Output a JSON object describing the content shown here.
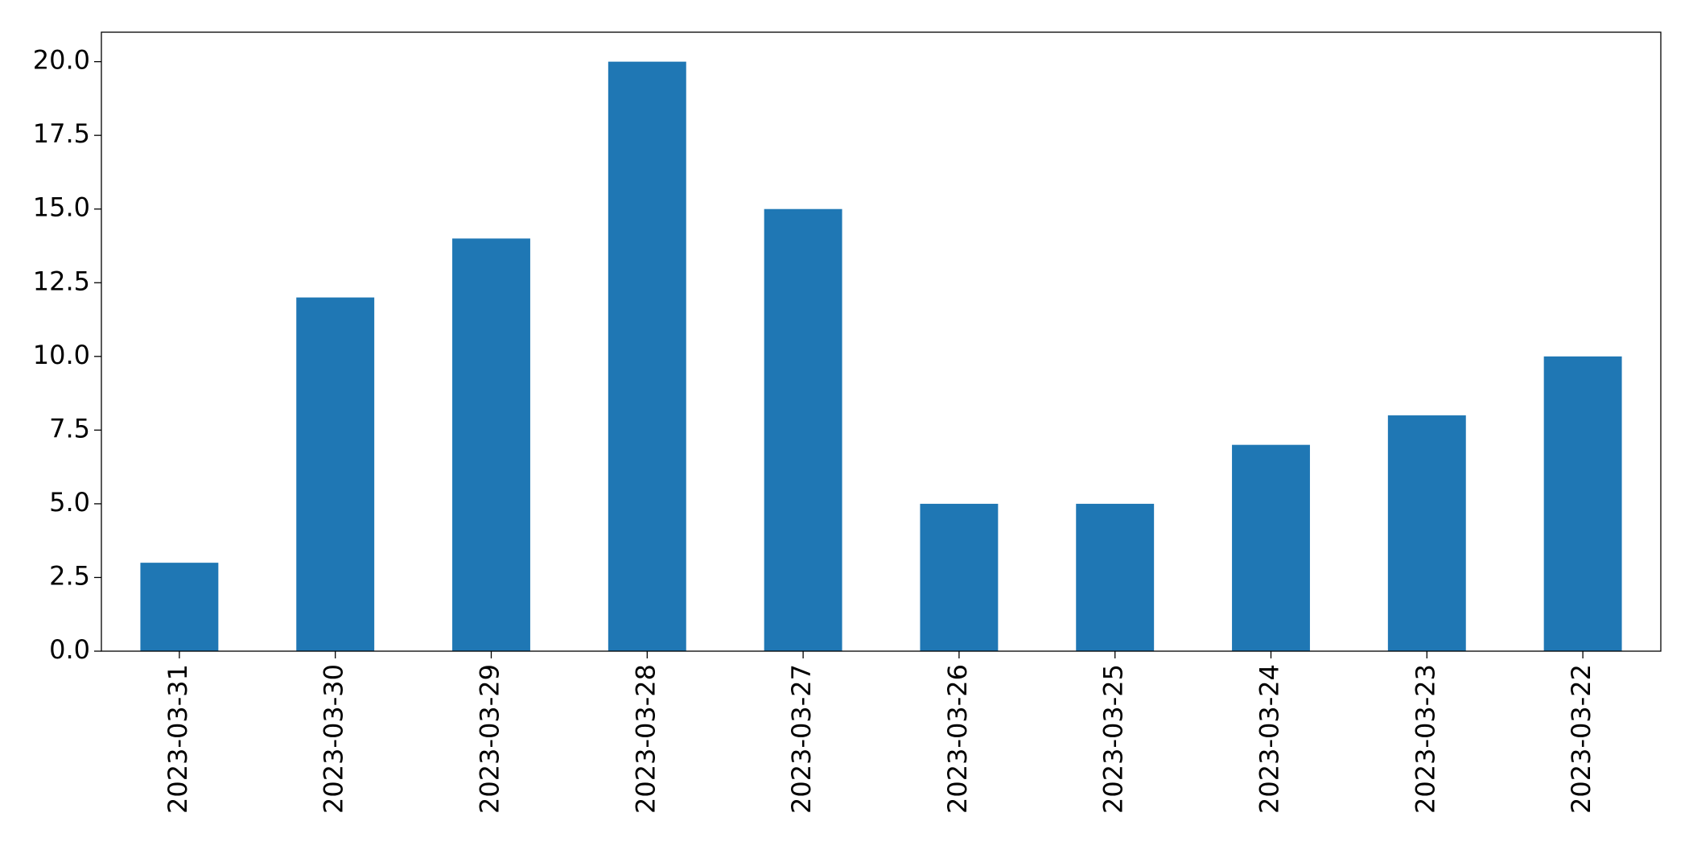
{
  "chart_data": {
    "type": "bar",
    "categories": [
      "2023-03-31",
      "2023-03-30",
      "2023-03-29",
      "2023-03-28",
      "2023-03-27",
      "2023-03-26",
      "2023-03-25",
      "2023-03-24",
      "2023-03-23",
      "2023-03-22"
    ],
    "values": [
      3,
      12,
      14,
      20,
      15,
      5,
      5,
      7,
      8,
      10
    ],
    "color": "#1f77b4",
    "ylim": [
      0,
      21
    ],
    "yticks": [
      {
        "value": 0,
        "label": "0.0"
      },
      2.5,
      {
        "value": 5,
        "label": "5.0"
      },
      7.5,
      {
        "value": 10,
        "label": "10.0"
      },
      12.5,
      {
        "value": 15,
        "label": "15.0"
      },
      17.5,
      {
        "value": 20,
        "label": "20.0"
      }
    ],
    "grid": false
  }
}
